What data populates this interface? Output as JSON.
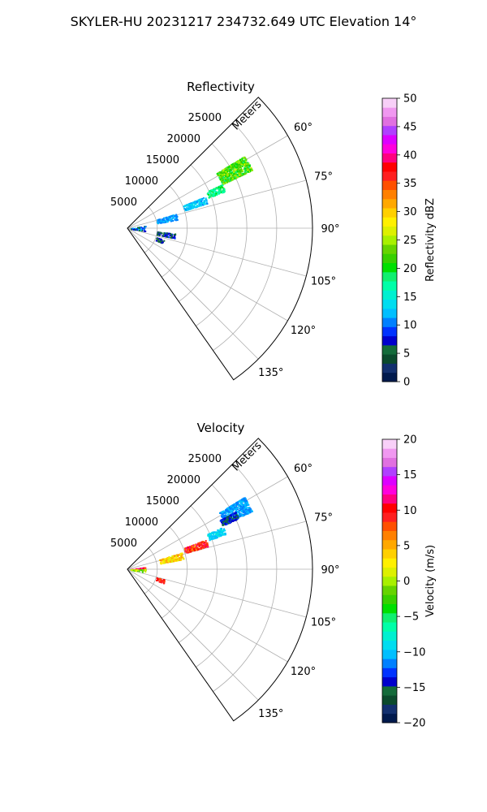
{
  "figure": {
    "title": "SKYLER-HU  20231217  234732.649 UTC Elevation 14°"
  },
  "chart_data": [
    {
      "type": "heatmap",
      "subtype": "polar-sector-ppi",
      "title": "Reflectivity",
      "radial_label": "Meters",
      "radial_ticks": [
        5000,
        10000,
        15000,
        20000,
        25000
      ],
      "radial_tick_labels": [
        "5000",
        "10000",
        "15000",
        "20000",
        "25000"
      ],
      "r_max_m": 31000,
      "azimuth_range_deg": [
        45,
        145
      ],
      "azimuth_ticks": [
        60,
        75,
        90,
        105,
        120,
        135
      ],
      "azimuth_tick_labels": [
        "60°",
        "75°",
        "90°",
        "105°",
        "120°",
        "135°"
      ],
      "grid": true,
      "colorbar": {
        "label": "Reflectivity dBZ",
        "vmin": 0,
        "vmax": 50,
        "ticks": [
          0,
          5,
          10,
          15,
          20,
          25,
          30,
          35,
          40,
          45,
          50
        ],
        "tick_labels": [
          "0",
          "5",
          "10",
          "15",
          "20",
          "25",
          "30",
          "35",
          "40",
          "45",
          "50"
        ],
        "colors": [
          "#001a4d",
          "#12306e",
          "#0b4a2c",
          "#146b3a",
          "#0000cc",
          "#0033ff",
          "#0080ff",
          "#00bfff",
          "#00ddf0",
          "#00f0d0",
          "#00ffa8",
          "#10f070",
          "#00e000",
          "#38d000",
          "#66d400",
          "#a8f000",
          "#ddf000",
          "#fff000",
          "#ffd000",
          "#ffa800",
          "#ff8000",
          "#ff5000",
          "#ff2020",
          "#ff0000",
          "#ff0080",
          "#ff00dd",
          "#dd00ff",
          "#b040ff",
          "#e070e0",
          "#f098f0",
          "#f8d0f8"
        ]
      },
      "echo_regions": [
        {
          "az_deg": 61.5,
          "r_m": [
            17500,
            23000
          ],
          "half_width_deg": 5,
          "value_range": [
            18,
            26
          ]
        },
        {
          "az_deg": 67,
          "r_m": [
            14500,
            17500
          ],
          "half_width_deg": 3,
          "value_range": [
            16,
            20
          ]
        },
        {
          "az_deg": 70,
          "r_m": [
            10000,
            14000
          ],
          "half_width_deg": 3.5,
          "value_range": [
            11,
            14
          ]
        },
        {
          "az_deg": 76.5,
          "r_m": [
            5000,
            8500
          ],
          "half_width_deg": 5,
          "value_range": [
            10,
            13
          ]
        },
        {
          "az_deg": 90,
          "r_m": [
            500,
            3000
          ],
          "half_width_deg": 12,
          "value_range": [
            5,
            14
          ]
        },
        {
          "az_deg": 99,
          "r_m": [
            5000,
            8000
          ],
          "half_width_deg": 4,
          "value_range": [
            5,
            9
          ]
        },
        {
          "az_deg": 110,
          "r_m": [
            5000,
            6500
          ],
          "half_width_deg": 4,
          "value_range": [
            5,
            8
          ]
        }
      ]
    },
    {
      "type": "heatmap",
      "subtype": "polar-sector-ppi",
      "title": "Velocity",
      "radial_label": "Meters",
      "radial_ticks": [
        5000,
        10000,
        15000,
        20000,
        25000
      ],
      "radial_tick_labels": [
        "5000",
        "10000",
        "15000",
        "20000",
        "25000"
      ],
      "r_max_m": 31000,
      "azimuth_range_deg": [
        45,
        145
      ],
      "azimuth_ticks": [
        60,
        75,
        90,
        105,
        120,
        135
      ],
      "azimuth_tick_labels": [
        "60°",
        "75°",
        "90°",
        "105°",
        "120°",
        "135°"
      ],
      "grid": true,
      "colorbar": {
        "label": "Velocity (m/s)",
        "vmin": -20,
        "vmax": 20,
        "ticks": [
          -20,
          -15,
          -10,
          -5,
          0,
          5,
          10,
          15,
          20
        ],
        "tick_labels": [
          "−20",
          "−15",
          "−10",
          "−5",
          "0",
          "5",
          "10",
          "15",
          "20"
        ],
        "colors": [
          "#001a4d",
          "#12306e",
          "#0b4a2c",
          "#146b3a",
          "#0000cc",
          "#0033ff",
          "#0080ff",
          "#00bfff",
          "#00ddf0",
          "#00f0d0",
          "#00ffa8",
          "#10f070",
          "#00e000",
          "#38d000",
          "#66d400",
          "#a8f000",
          "#ddf000",
          "#fff000",
          "#ffd000",
          "#ffa800",
          "#ff8000",
          "#ff5000",
          "#ff2020",
          "#ff0000",
          "#ff0080",
          "#ff00dd",
          "#dd00ff",
          "#b040ff",
          "#e070e0",
          "#f098f0",
          "#f8d0f8"
        ]
      },
      "echo_regions": [
        {
          "az_deg": 61.5,
          "r_m": [
            18000,
            23000
          ],
          "half_width_deg": 5,
          "value_range": [
            -12,
            -10
          ]
        },
        {
          "az_deg": 63.5,
          "r_m": [
            17500,
            20500
          ],
          "half_width_deg": 2.5,
          "value_range": [
            -16,
            -13
          ]
        },
        {
          "az_deg": 68,
          "r_m": [
            14500,
            17500
          ],
          "half_width_deg": 3,
          "value_range": [
            -11,
            -8
          ]
        },
        {
          "az_deg": 71.5,
          "r_m": [
            10000,
            14000
          ],
          "half_width_deg": 3.5,
          "value_range": [
            6,
            12
          ]
        },
        {
          "az_deg": 76,
          "r_m": [
            5500,
            9500
          ],
          "half_width_deg": 5,
          "value_range": [
            1,
            6
          ]
        },
        {
          "az_deg": 87,
          "r_m": [
            500,
            3000
          ],
          "half_width_deg": 6,
          "value_range": [
            8,
            13
          ]
        },
        {
          "az_deg": 94,
          "r_m": [
            500,
            3000
          ],
          "half_width_deg": 7,
          "value_range": [
            -3,
            2
          ]
        },
        {
          "az_deg": 108,
          "r_m": [
            5000,
            6500
          ],
          "half_width_deg": 4,
          "value_range": [
            8,
            10
          ]
        }
      ]
    }
  ]
}
